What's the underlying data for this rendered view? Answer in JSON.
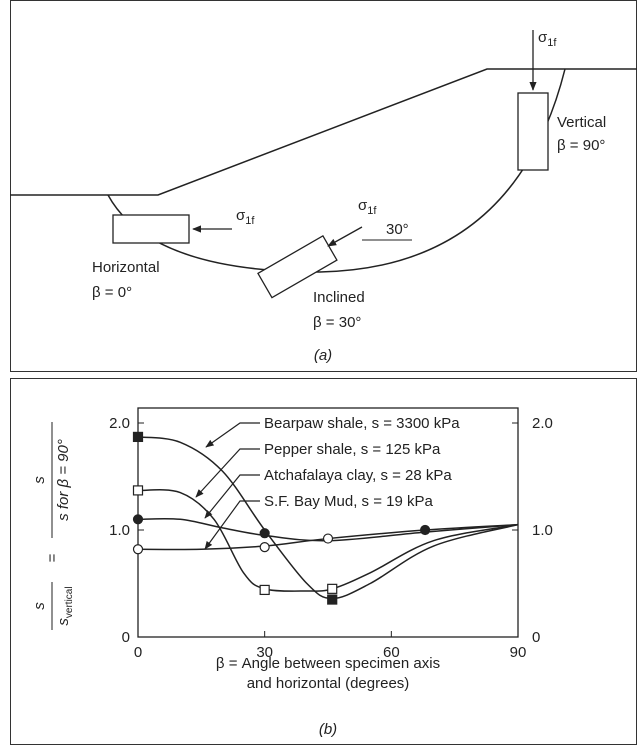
{
  "diagram": {
    "stress_labels": [
      {
        "symbol": "σ",
        "subscript": "1f"
      },
      {
        "symbol": "σ",
        "subscript": "1f"
      },
      {
        "symbol": "σ",
        "subscript": "1f"
      }
    ],
    "vertical": {
      "name": "Vertical",
      "angle": "β = 90°"
    },
    "horizontal": {
      "name": "Horizontal",
      "angle": "β = 0°"
    },
    "inclined": {
      "name": "Inclined",
      "angle": "β = 30°",
      "arrow_angle": "30°"
    },
    "caption": "(a)"
  },
  "chart_data": {
    "type": "line",
    "caption": "(b)",
    "x_label": [
      "β = Angle between specimen axis",
      "and horizontal (degrees)"
    ],
    "y_label": {
      "left_num": "s",
      "left_den": "s",
      "left_den_sub": "vertical",
      "equals": "=",
      "right_num": "s",
      "right_den": "s for β = 90°"
    },
    "xlim": [
      0,
      90
    ],
    "xticks": [
      0,
      30,
      60,
      90
    ],
    "ylim": [
      0,
      2
    ],
    "yticks": [
      0,
      {
        "value": 1,
        "label": "1.0"
      },
      {
        "value": 2,
        "label": "2.0"
      }
    ],
    "y2lim": [
      0,
      2
    ],
    "y2ticks": [
      0,
      {
        "value": 1,
        "label": "1.0"
      },
      {
        "value": 2,
        "label": "2.0"
      }
    ],
    "series": [
      {
        "name": "Bearpaw shale, s = 3300 kPa",
        "color": "#222222",
        "marker": "filled-square",
        "x": [
          0,
          10,
          20,
          30,
          40,
          46,
          55,
          70,
          90
        ],
        "values": [
          1.87,
          1.82,
          1.55,
          1.0,
          0.5,
          0.36,
          0.5,
          0.85,
          1.05
        ],
        "points": {
          "x": [
            0,
            46
          ],
          "values": [
            1.87,
            0.35
          ]
        }
      },
      {
        "name": "Pepper shale, s = 125 kPa",
        "color": "#222222",
        "marker": "open-square",
        "x": [
          0,
          10,
          18,
          25,
          30,
          40,
          46,
          55,
          70,
          90
        ],
        "values": [
          1.37,
          1.35,
          1.1,
          0.6,
          0.45,
          0.43,
          0.45,
          0.6,
          0.9,
          1.05
        ],
        "points": {
          "x": [
            0,
            30,
            46
          ],
          "values": [
            1.37,
            0.44,
            0.45
          ]
        }
      },
      {
        "name": "Atchafalaya clay, s = 28 kPa",
        "color": "#222222",
        "marker": "filled-circle",
        "x": [
          0,
          10,
          20,
          30,
          45,
          68,
          90
        ],
        "values": [
          1.1,
          1.1,
          1.02,
          0.95,
          0.9,
          0.98,
          1.05
        ],
        "points": {
          "x": [
            0,
            30,
            68
          ],
          "values": [
            1.1,
            0.97,
            1.0
          ]
        }
      },
      {
        "name": "S.F. Bay Mud, s = 19 kPa",
        "color": "#222222",
        "marker": "open-circle",
        "x": [
          0,
          15,
          30,
          45,
          68,
          90
        ],
        "values": [
          0.82,
          0.82,
          0.85,
          0.92,
          1.0,
          1.05
        ],
        "points": {
          "x": [
            0,
            30,
            45
          ],
          "values": [
            0.82,
            0.84,
            0.92
          ]
        }
      }
    ]
  }
}
